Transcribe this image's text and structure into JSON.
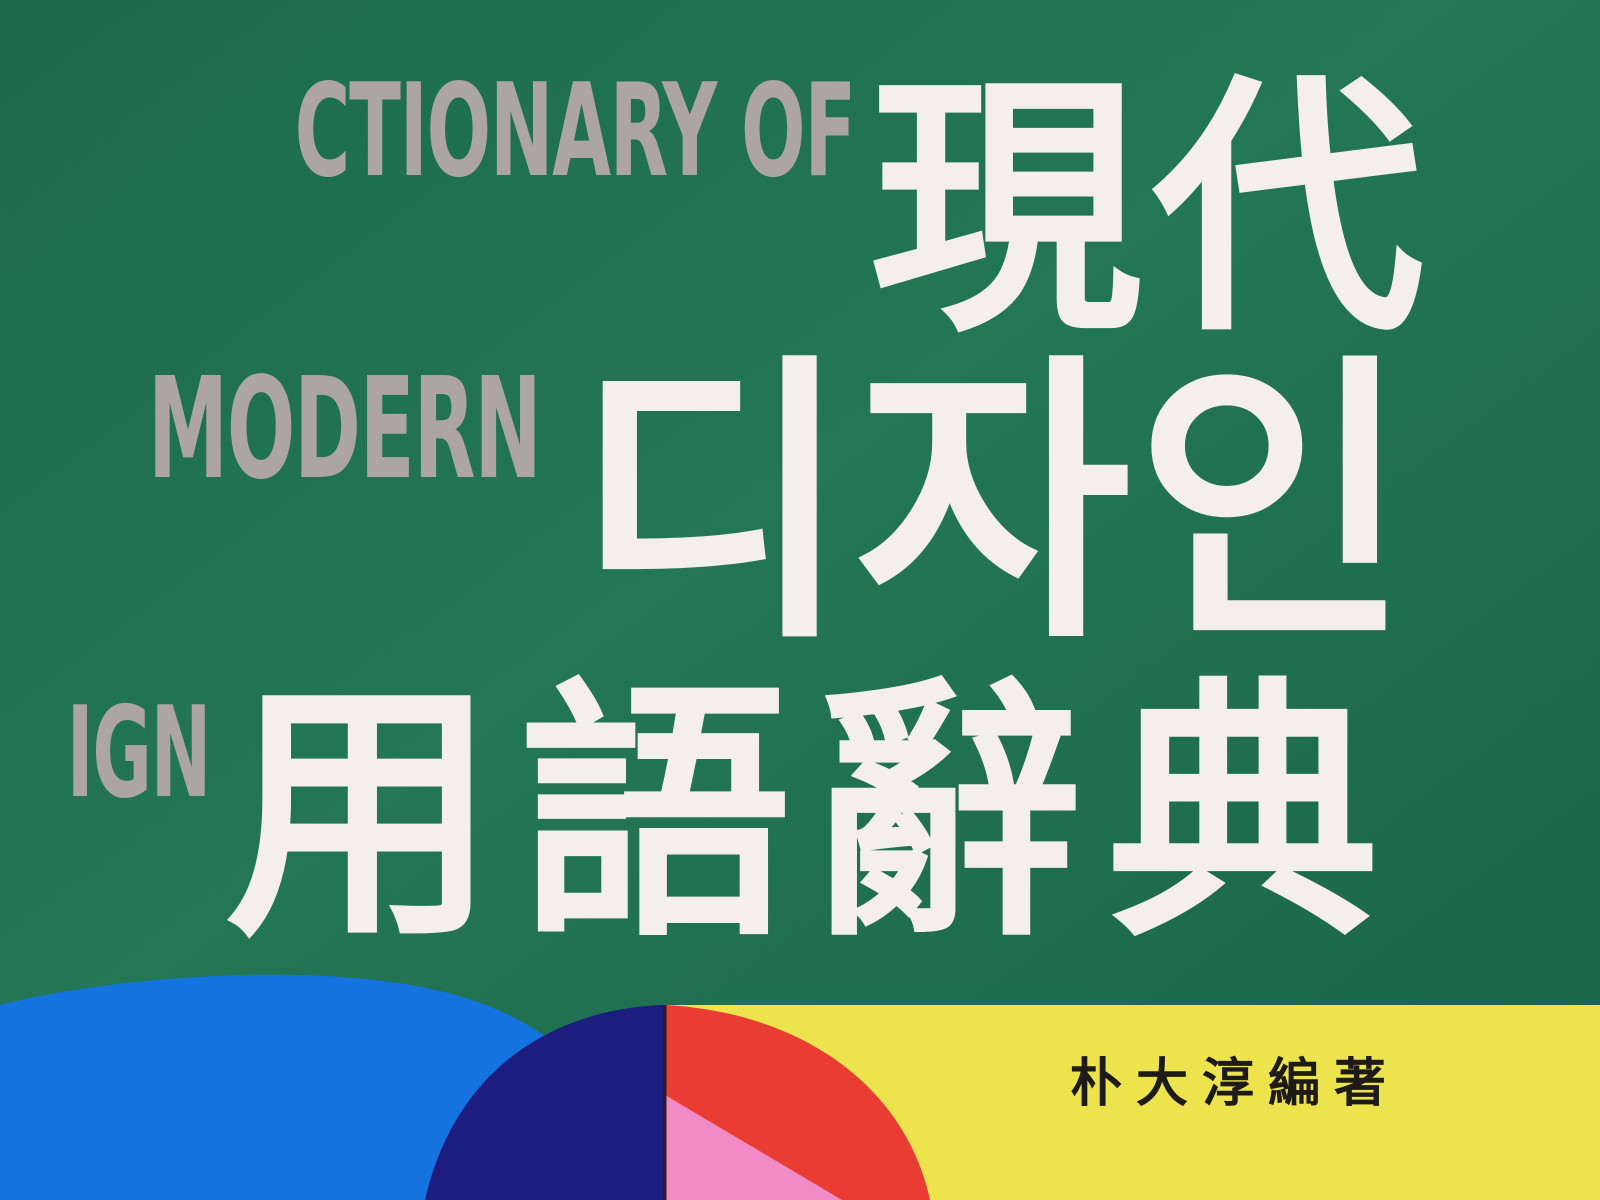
{
  "cover": {
    "title_en": [
      "CTIONARY OF",
      "MODERN",
      "IGN"
    ],
    "title_ko": [
      "現代",
      "디자인",
      "用語辭典"
    ],
    "author": "朴大淳編著"
  },
  "colors": {
    "green_board": "#1f6f52",
    "english_title": "#ada4a5",
    "korean_title": "#f4efec",
    "yellow_band": "#ece34d",
    "blue_shape": "#1573e0",
    "navy_wedge": "#1c1d7f",
    "red_wedge": "#e93d34",
    "pink_wedge": "#f28bc5",
    "author_text": "#1d1a18"
  }
}
